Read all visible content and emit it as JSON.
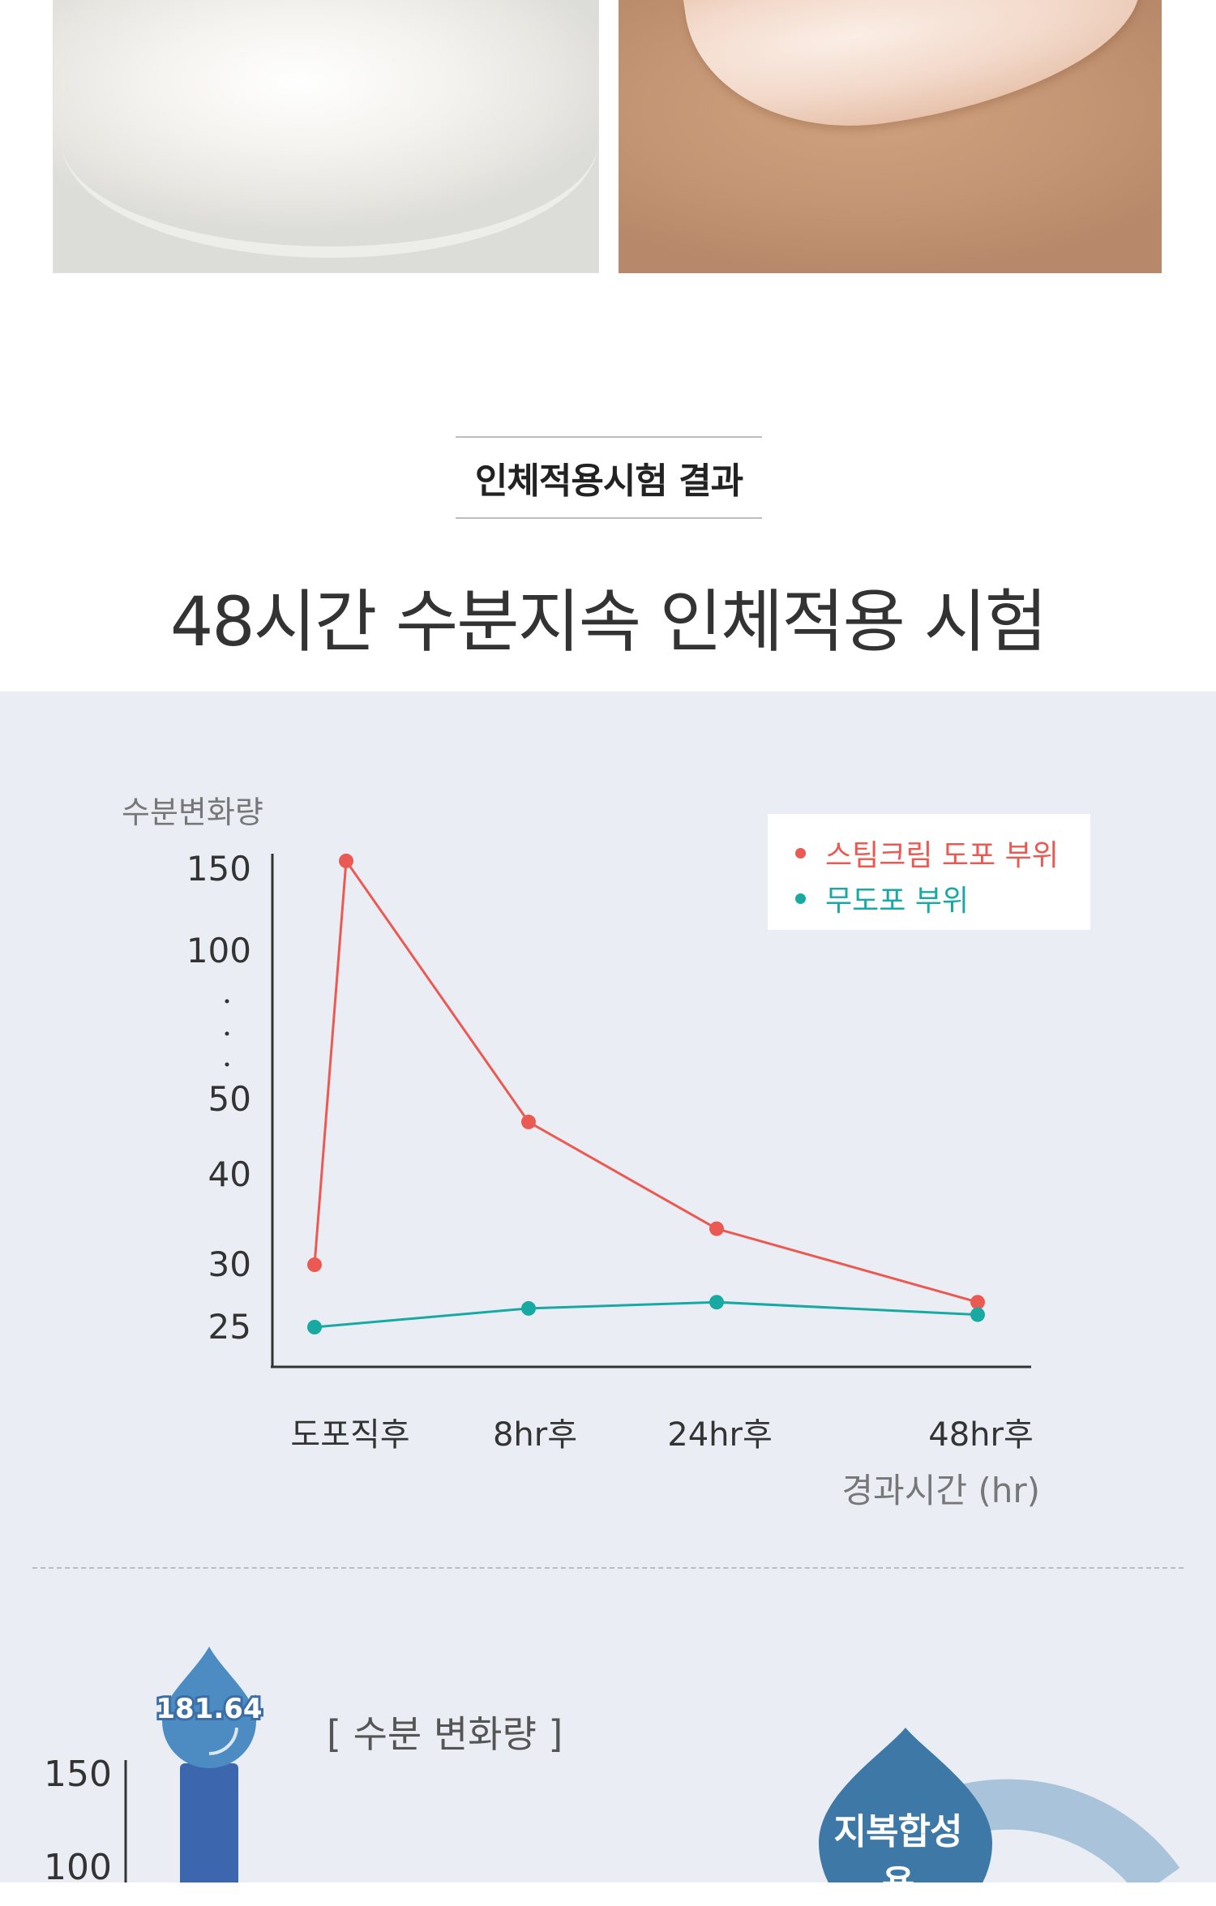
{
  "photos": [
    {
      "name": "cream-texture-photo"
    },
    {
      "name": "skin-swatch-photo"
    }
  ],
  "section_label": "인체적용시험 결과",
  "main_title": "48시간 수분지속 인체적용 시험",
  "colors": {
    "red_series": "#ea5a52",
    "teal_series": "#19a9a3",
    "panel_bg": "#eaeef4",
    "bar_blue": "#3c66ae",
    "drop_blue": "#4c8cc3",
    "badge_blue": "#3d78a6",
    "arc_blue": "#a8c3da"
  },
  "chart_data": [
    {
      "type": "line",
      "ylabel": "수분변화량",
      "xlabel": "경과시간 (hr)",
      "y_tick_labels": [
        "150",
        "100",
        "50",
        "40",
        "30",
        "25"
      ],
      "y_axis_break": true,
      "categories": [
        "도포직후",
        "8hr후",
        "24hr후",
        "48hr후"
      ],
      "series": [
        {
          "name": "스팀크림 도포 부위",
          "x": [
            "도포직후",
            "도포직후",
            "8hr후",
            "24hr후",
            "48hr후"
          ],
          "values": [
            30,
            155,
            47,
            34,
            27
          ],
          "color": "#ea5a52"
        },
        {
          "name": "무도포 부위",
          "x": [
            "도포직후",
            "8hr후",
            "24hr후",
            "48hr후"
          ],
          "values": [
            25,
            26.5,
            27,
            26
          ],
          "color": "#19a9a3"
        }
      ],
      "legend_position": "top-right",
      "grid": false
    },
    {
      "type": "bar",
      "title": "[ 수분 변화량 ]",
      "y_tick_labels": [
        "150",
        "100"
      ],
      "values": [
        181.64
      ],
      "data_labels": [
        "181.64"
      ],
      "badge": "지복합성용"
    }
  ]
}
